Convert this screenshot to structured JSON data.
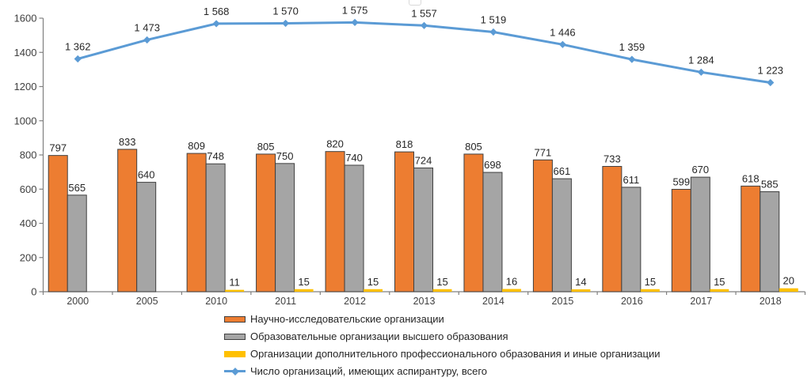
{
  "chart_data": {
    "type": "bar",
    "subtype": "clustered-bars-with-line",
    "title": "",
    "xlabel": "",
    "ylabel": "",
    "ylim": [
      0,
      1600
    ],
    "ytick_step": 200,
    "ytick_labels": [
      "0",
      "200",
      "400",
      "600",
      "800",
      "1000",
      "1200",
      "1400",
      "1600"
    ],
    "grid": false,
    "legend_position": "bottom-left",
    "categories": [
      "2000",
      "2005",
      "2010",
      "2011",
      "2012",
      "2013",
      "2014",
      "2015",
      "2016",
      "2017",
      "2018"
    ],
    "series": [
      {
        "name": "Научно-исследовательские организации",
        "type": "bar",
        "color": "#ED7D31",
        "border_color": "#404040",
        "values": [
          797,
          833,
          809,
          805,
          820,
          818,
          805,
          771,
          733,
          599,
          618
        ],
        "labels": [
          "797",
          "833",
          "809",
          "805",
          "820",
          "818",
          "805",
          "771",
          "733",
          "599",
          "618"
        ]
      },
      {
        "name": "Образовательные организации высшего образования",
        "type": "bar",
        "color": "#A5A5A5",
        "border_color": "#404040",
        "values": [
          565,
          640,
          748,
          750,
          740,
          724,
          698,
          661,
          611,
          670,
          585
        ],
        "labels": [
          "565",
          "640",
          "748",
          "750",
          "740",
          "724",
          "698",
          "661",
          "611",
          "670",
          "585"
        ]
      },
      {
        "name": "Организации дополнительного профессионального образования и иные организации",
        "type": "bar",
        "color": "#FFC000",
        "border_color": null,
        "values": [
          null,
          null,
          11,
          15,
          15,
          15,
          16,
          14,
          15,
          15,
          20
        ],
        "labels": [
          "",
          "",
          "11",
          "15",
          "15",
          "15",
          "16",
          "14",
          "15",
          "15",
          "20"
        ]
      },
      {
        "name": "Число организаций, имеющих аспирантуру, всего",
        "type": "line",
        "color": "#5B9BD5",
        "marker": "diamond",
        "values": [
          1362,
          1473,
          1568,
          1570,
          1575,
          1557,
          1519,
          1446,
          1359,
          1284,
          1223
        ],
        "labels": [
          "1 362",
          "1 473",
          "1 568",
          "1 570",
          "1 575",
          "1 557",
          "1 519",
          "1 446",
          "1 359",
          "1 284",
          "1 223"
        ]
      }
    ],
    "axis_color": "#808080",
    "axis_text_color": "#404040",
    "data_label_color": "#262626"
  }
}
